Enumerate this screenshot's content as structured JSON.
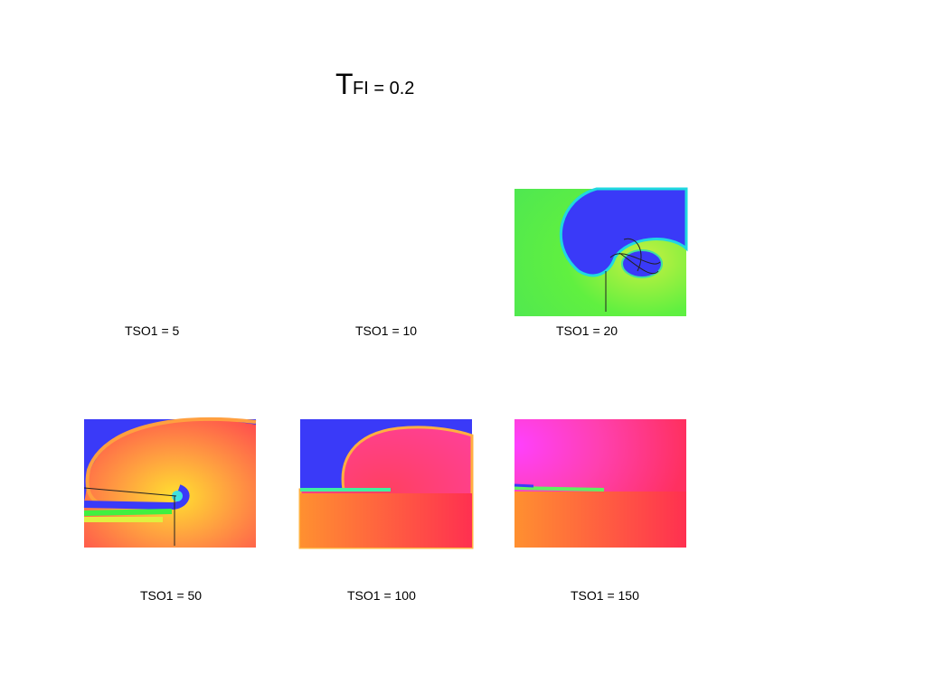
{
  "title": {
    "prefix": "T",
    "rest": "FI = 0.2"
  },
  "panels": [
    {
      "label": "TSO1 = 5"
    },
    {
      "label": "TSO1 = 10"
    },
    {
      "label": "TSO1 = 20"
    },
    {
      "label": "TSO1 = 50"
    },
    {
      "label": "TSO1 = 100"
    },
    {
      "label": "TSO1 = 150"
    }
  ]
}
